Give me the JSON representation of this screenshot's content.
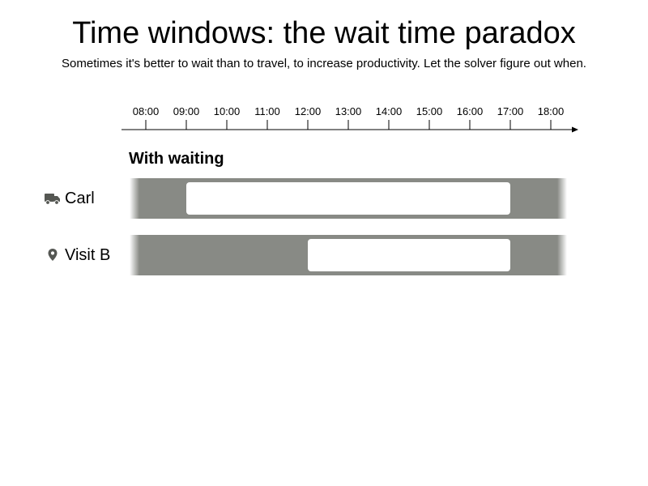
{
  "header": {
    "title": "Time windows: the wait time paradox",
    "subtitle": "Sometimes it's better to wait than to travel, to increase productivity. Let the solver figure out when."
  },
  "timeline": {
    "ticks": [
      "08:00",
      "09:00",
      "10:00",
      "11:00",
      "12:00",
      "13:00",
      "14:00",
      "15:00",
      "16:00",
      "17:00",
      "18:00"
    ],
    "start_hour": 7.5,
    "end_hour": 18.5
  },
  "section": {
    "title": "With waiting"
  },
  "rows": [
    {
      "label": "Carl",
      "icon": "truck-icon",
      "bar_start": "09:00",
      "bar_end": "17:00"
    },
    {
      "label": "Visit B",
      "icon": "map-pin-icon",
      "bar_start": "12:00",
      "bar_end": "17:00"
    }
  ],
  "colors": {
    "lane": "#888a85",
    "bar": "#ffffff",
    "icon": "#555753"
  }
}
